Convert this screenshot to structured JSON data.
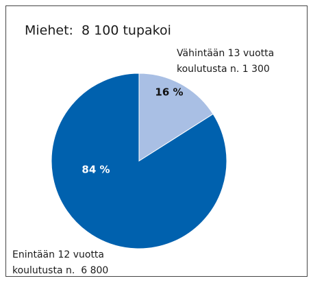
{
  "chart_data": {
    "type": "pie",
    "title": "Miehet:  8 100 tupakoi",
    "categories": [
      [
        "Vähintään 13 vuotta",
        "koulutusta n. 1 300"
      ],
      [
        "Enintään 12 vuotta",
        "koulutusta n.  6 800"
      ]
    ],
    "values": [
      16,
      84
    ],
    "value_labels": [
      "16 %",
      "84 %"
    ],
    "colors": [
      "#a9bfe4",
      "#0061ae"
    ]
  }
}
